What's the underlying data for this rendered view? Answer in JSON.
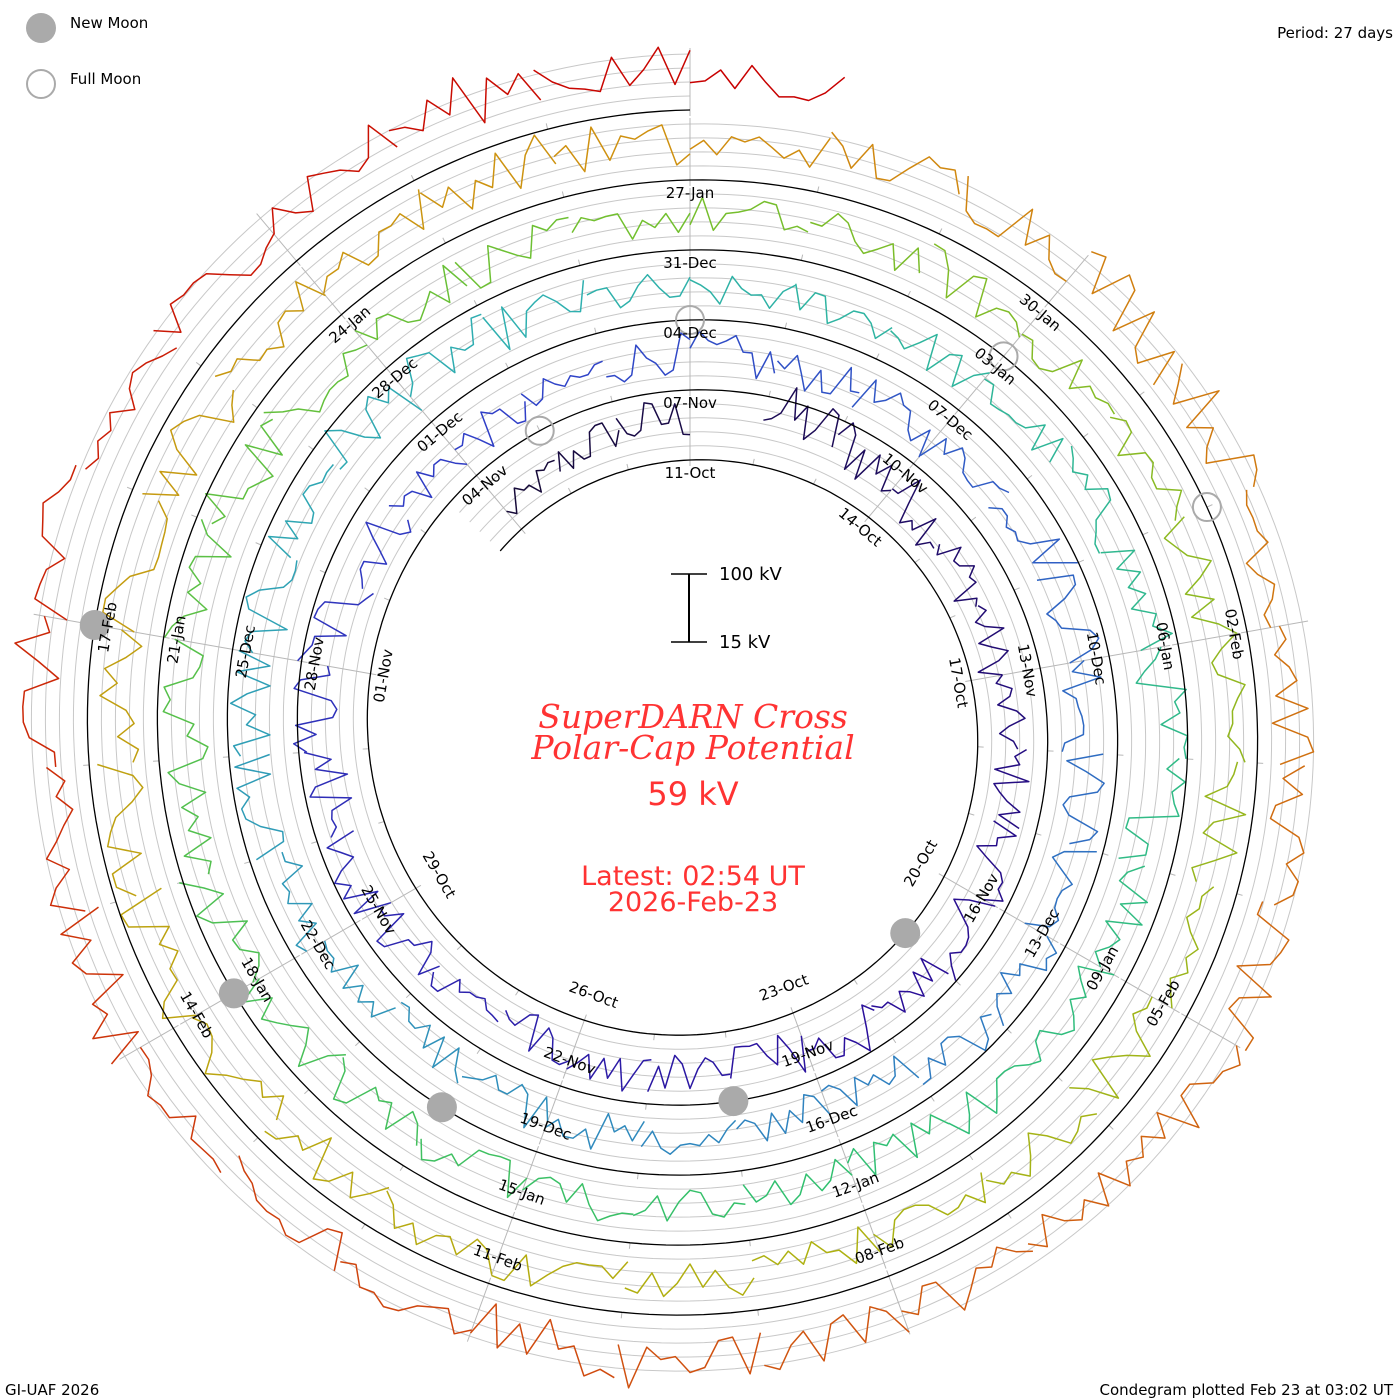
{
  "legend": {
    "new_moon": "New Moon",
    "full_moon": "Full Moon",
    "period": "Period: 27 days"
  },
  "footer": {
    "credit": "GI-UAF 2026",
    "plotted": "Condegram plotted Feb 23 at 03:02 UT"
  },
  "center": {
    "title_line1": "SuperDARN Cross",
    "title_line2": "Polar-Cap Potential",
    "current_value": "59 kV",
    "latest_time": "Latest: 02:54 UT",
    "latest_date": "2026-Feb-23"
  },
  "chart_data": {
    "type": "line",
    "layout": "condegram-spiral",
    "title": "SuperDARN Cross Polar-Cap Potential",
    "period_days": 27,
    "start_date": "2025-10-08",
    "end_date": "2026-02-23",
    "scale_bar": {
      "top_label": "100 kV",
      "bottom_label": "15 kV",
      "top_value": 100,
      "bottom_value": 15
    },
    "y_unit": "kV",
    "date_labels": [
      "11-Oct",
      "14-Oct",
      "17-Oct",
      "20-Oct",
      "23-Oct",
      "26-Oct",
      "29-Oct",
      "01-Nov",
      "04-Nov",
      "07-Nov",
      "10-Nov",
      "13-Nov",
      "16-Nov",
      "19-Nov",
      "22-Nov",
      "25-Nov",
      "28-Nov",
      "01-Dec",
      "04-Dec",
      "07-Dec",
      "10-Dec",
      "13-Dec",
      "16-Dec",
      "19-Dec",
      "22-Dec",
      "25-Dec",
      "28-Dec",
      "31-Dec",
      "03-Jan",
      "06-Jan",
      "09-Jan",
      "12-Jan",
      "15-Jan",
      "18-Jan",
      "21-Jan",
      "24-Jan",
      "27-Jan",
      "30-Jan",
      "02-Feb",
      "05-Feb",
      "08-Feb",
      "11-Feb",
      "14-Feb",
      "17-Feb"
    ],
    "daily_values_kV": [
      40,
      55,
      70,
      null,
      90,
      85,
      70,
      60,
      55,
      50,
      60,
      65,
      70,
      80,
      75,
      70,
      60,
      65,
      70,
      55,
      60,
      75,
      70,
      80,
      85,
      70,
      60,
      55,
      50,
      60,
      65,
      55,
      60,
      50,
      70,
      80,
      75,
      65,
      70,
      75,
      80,
      55,
      50,
      55,
      60,
      60,
      55,
      50,
      70,
      75,
      80,
      70,
      75,
      80,
      70,
      65,
      60,
      50,
      55,
      60,
      55,
      65,
      70,
      75,
      80,
      70,
      75,
      70,
      55,
      50,
      55,
      60,
      70,
      65,
      70,
      75,
      80,
      70,
      75,
      80,
      70,
      65,
      60,
      55,
      60,
      60,
      65,
      55,
      60,
      65,
      70,
      75,
      60,
      70,
      65,
      60,
      55,
      60,
      65,
      70,
      75,
      70,
      80,
      75,
      65,
      70,
      75,
      60,
      65,
      70,
      75,
      55,
      70,
      80,
      85,
      75,
      70,
      65,
      60,
      70,
      75,
      80,
      70,
      65,
      75,
      80,
      70,
      75,
      60,
      80,
      70,
      75,
      85,
      80,
      70,
      75,
      80,
      85,
      59
    ],
    "new_moons": [
      "2025-10-21",
      "2025-11-20",
      "2025-12-20",
      "2026-01-18",
      "2026-02-17"
    ],
    "full_moons": [
      "2025-11-05",
      "2025-12-04",
      "2026-01-03",
      "2026-02-01"
    ],
    "color_stops": [
      "#150a35",
      "#2a0e9a",
      "#3040c8",
      "#2f80c0",
      "#2fb0b0",
      "#30c070",
      "#70c030",
      "#b0b010",
      "#d09010",
      "#d05010",
      "#c80000"
    ],
    "moon_color": "#aaaaaa"
  }
}
